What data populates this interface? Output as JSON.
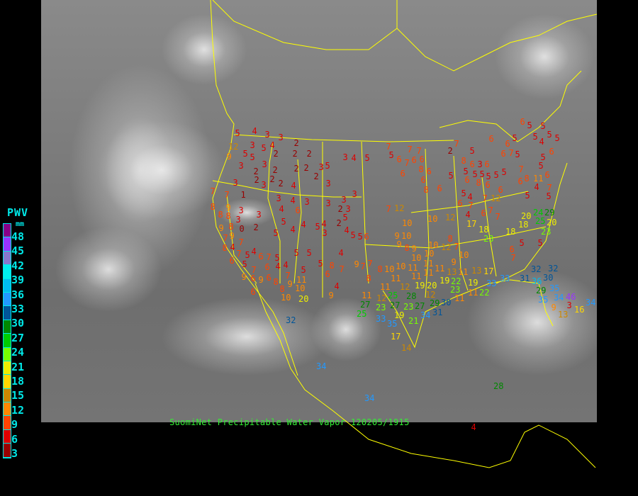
{
  "legend": {
    "title": "PWV",
    "unit": "mm",
    "labels": [
      "48",
      "45",
      "42",
      "39",
      "36",
      "33",
      "30",
      "27",
      "24",
      "21",
      "18",
      "15",
      "12",
      "9",
      "6",
      "3"
    ],
    "colors": [
      "#880088",
      "#9933ff",
      "#8877cc",
      "#00eeee",
      "#00bbee",
      "#2299ff",
      "#005599",
      "#008800",
      "#00cc00",
      "#77ff00",
      "#eeee00",
      "#ffd700",
      "#cc8800",
      "#ff8800",
      "#ff4400",
      "#dd0000",
      "#990000"
    ]
  },
  "caption": "SuomiNet Precipitable Water Vapor 120205/1915",
  "border_color": "#ffff00",
  "stations": [
    5,
    4,
    3,
    3,
    2,
    3,
    5,
    4,
    2,
    2,
    2,
    3,
    4,
    5,
    5,
    5,
    12,
    9,
    3,
    3,
    2,
    2,
    2,
    2,
    3,
    5,
    2,
    2,
    2,
    3,
    2,
    3,
    4,
    3,
    3,
    7,
    7,
    1,
    3,
    4,
    3,
    3,
    3,
    2,
    3,
    8,
    9,
    3,
    4,
    6,
    5,
    2,
    3,
    8,
    8,
    3,
    8,
    9,
    0,
    2,
    5,
    4,
    4,
    5,
    4,
    3,
    4,
    5,
    5,
    9,
    7,
    5,
    8,
    4,
    7,
    7,
    5,
    4,
    6,
    6,
    7,
    5,
    5,
    5,
    4,
    5,
    6,
    4,
    4,
    7,
    5,
    8,
    7,
    5,
    6,
    7,
    9,
    6,
    9,
    6,
    8,
    9,
    6,
    8,
    10,
    10,
    11,
    4,
    20,
    9,
    7,
    7,
    8,
    8,
    11,
    12,
    11,
    6,
    5,
    5,
    6,
    5,
    5,
    4,
    5,
    5,
    7,
    7,
    7,
    2,
    7,
    5,
    6,
    5,
    6,
    7,
    6,
    6,
    8,
    6,
    6,
    6,
    5,
    8,
    6,
    3,
    6,
    6,
    7,
    5,
    6,
    5,
    5,
    5,
    5,
    5,
    5,
    6,
    8,
    6,
    5,
    5,
    7,
    6,
    8,
    11,
    4,
    6,
    7,
    5,
    8,
    6,
    6,
    5,
    5,
    4,
    6,
    7,
    7,
    12,
    4,
    6,
    7,
    7,
    7,
    12,
    10,
    12,
    10,
    17,
    18,
    18,
    23,
    20,
    24,
    25,
    29,
    18,
    20,
    23,
    5,
    5,
    6,
    7,
    6,
    9,
    10,
    9,
    8,
    9,
    10,
    10,
    11,
    10,
    12,
    7,
    8,
    10,
    9,
    9,
    10,
    10,
    11,
    11,
    11,
    11,
    13,
    11,
    12,
    19,
    20,
    19,
    22,
    23,
    11,
    13,
    17,
    19,
    25,
    27,
    28,
    12,
    11,
    11,
    22,
    23,
    27,
    25,
    23,
    27,
    29,
    30,
    19,
    21,
    34,
    31,
    33,
    35,
    33,
    33,
    32,
    31,
    36,
    30,
    32,
    29,
    35,
    34,
    46,
    35,
    3,
    9,
    13,
    16,
    34,
    32,
    34,
    34,
    17,
    14,
    28,
    4
  ]
}
